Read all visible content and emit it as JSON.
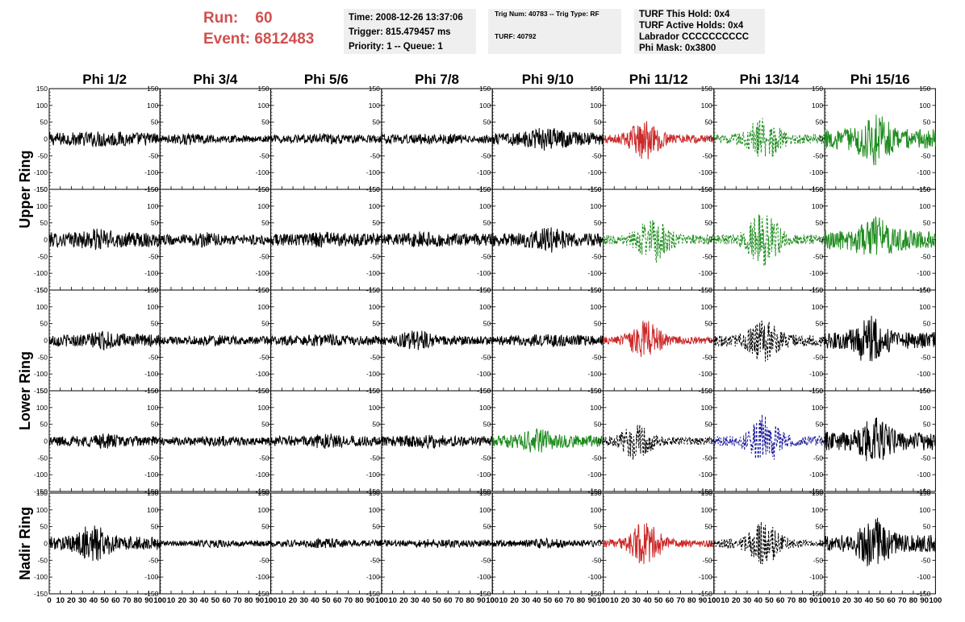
{
  "header": {
    "run_label": "Run:",
    "run_value": "60",
    "event_label": "Event:",
    "event_value": "6812483",
    "time": "Time: 2008-12-26 13:37:06",
    "trigger": "Trigger: 815.479457 ms",
    "priority": "Priority: 1 -- Queue: 1",
    "trig_num": "Trig Num: 40783 -- Trig Type: RF",
    "turf": "TURF: 40792",
    "turf_this_hold": "TURF This Hold: 0x4",
    "turf_active_holds": "TURF Active Holds: 0x4",
    "labrador": "Labrador CCCCCCCCCC",
    "phi_mask": "Phi Mask: 0x3800"
  },
  "colors": {
    "black": "#000000",
    "red": "#cc2a2a",
    "green": "#1f8c1f",
    "blue": "#1a1a9a",
    "run_text": "#d0504f",
    "info_bg": "#efefef"
  },
  "chart_data": {
    "type": "line",
    "columns": [
      "Phi 1/2",
      "Phi 3/4",
      "Phi 5/6",
      "Phi 7/8",
      "Phi 9/10",
      "Phi 11/12",
      "Phi 13/14",
      "Phi 15/16"
    ],
    "row_labels": [
      {
        "text": "Upper Ring",
        "rows": [
          0,
          1
        ]
      },
      {
        "text": "Lower Ring",
        "rows": [
          2,
          3
        ]
      },
      {
        "text": "Nadir Ring",
        "rows": [
          4
        ]
      }
    ],
    "ylim": [
      -150,
      150
    ],
    "xlim": [
      0,
      100
    ],
    "y_ticks": [
      -150,
      -100,
      -50,
      0,
      50,
      100,
      150
    ],
    "y_tick_labels": [
      "-150",
      "-100",
      "-50",
      "0",
      "50",
      "100",
      "150"
    ],
    "x_ticks": [
      0,
      10,
      20,
      30,
      40,
      50,
      60,
      70,
      80,
      90,
      100
    ],
    "x_tick_labels": [
      "0",
      "10",
      "20",
      "30",
      "40",
      "50",
      "60",
      "70",
      "80",
      "90",
      "100"
    ],
    "panels": [
      [
        {
          "color": "black",
          "dashed": false,
          "amp": 20,
          "burst_amp": 5,
          "burst_center": 50
        },
        {
          "color": "black",
          "dashed": false,
          "amp": 10,
          "burst_amp": 8,
          "burst_center": 25
        },
        {
          "color": "black",
          "dashed": false,
          "amp": 12,
          "burst_amp": 5,
          "burst_center": 50
        },
        {
          "color": "black",
          "dashed": false,
          "amp": 13,
          "burst_amp": 5,
          "burst_center": 50
        },
        {
          "color": "black",
          "dashed": false,
          "amp": 20,
          "burst_amp": 18,
          "burst_center": 50
        },
        {
          "color": "red",
          "dashed": false,
          "amp": 12,
          "burst_amp": 50,
          "burst_center": 38
        },
        {
          "color": "green",
          "dashed": true,
          "amp": 15,
          "burst_amp": 55,
          "burst_center": 45
        },
        {
          "color": "green",
          "dashed": false,
          "amp": 30,
          "burst_amp": 50,
          "burst_center": 45
        }
      ],
      [
        {
          "color": "black",
          "dashed": false,
          "amp": 22,
          "burst_amp": 12,
          "burst_center": 45
        },
        {
          "color": "black",
          "dashed": false,
          "amp": 15,
          "burst_amp": 8,
          "burst_center": 40
        },
        {
          "color": "black",
          "dashed": false,
          "amp": 18,
          "burst_amp": 8,
          "burst_center": 50
        },
        {
          "color": "black",
          "dashed": false,
          "amp": 18,
          "burst_amp": 8,
          "burst_center": 40
        },
        {
          "color": "black",
          "dashed": false,
          "amp": 20,
          "burst_amp": 20,
          "burst_center": 50
        },
        {
          "color": "green",
          "dashed": true,
          "amp": 15,
          "burst_amp": 55,
          "burst_center": 45
        },
        {
          "color": "green",
          "dashed": true,
          "amp": 15,
          "burst_amp": 75,
          "burst_center": 45
        },
        {
          "color": "green",
          "dashed": false,
          "amp": 30,
          "burst_amp": 40,
          "burst_center": 45
        }
      ],
      [
        {
          "color": "black",
          "dashed": false,
          "amp": 18,
          "burst_amp": 10,
          "burst_center": 50
        },
        {
          "color": "black",
          "dashed": false,
          "amp": 12,
          "burst_amp": 5,
          "burst_center": 50
        },
        {
          "color": "black",
          "dashed": false,
          "amp": 15,
          "burst_amp": 5,
          "burst_center": 50
        },
        {
          "color": "black",
          "dashed": false,
          "amp": 13,
          "burst_amp": 20,
          "burst_center": 30
        },
        {
          "color": "black",
          "dashed": false,
          "amp": 15,
          "burst_amp": 5,
          "burst_center": 50
        },
        {
          "color": "red",
          "dashed": false,
          "amp": 12,
          "burst_amp": 48,
          "burst_center": 38
        },
        {
          "color": "black",
          "dashed": true,
          "amp": 18,
          "burst_amp": 48,
          "burst_center": 45
        },
        {
          "color": "black",
          "dashed": false,
          "amp": 25,
          "burst_amp": 50,
          "burst_center": 40
        }
      ],
      [
        {
          "color": "black",
          "dashed": false,
          "amp": 15,
          "burst_amp": 8,
          "burst_center": 50
        },
        {
          "color": "black",
          "dashed": false,
          "amp": 12,
          "burst_amp": 5,
          "burst_center": 50
        },
        {
          "color": "black",
          "dashed": false,
          "amp": 15,
          "burst_amp": 8,
          "burst_center": 50
        },
        {
          "color": "black",
          "dashed": false,
          "amp": 15,
          "burst_amp": 8,
          "burst_center": 40
        },
        {
          "color": "green",
          "dashed": false,
          "amp": 18,
          "burst_amp": 20,
          "burst_center": 40
        },
        {
          "color": "black",
          "dashed": true,
          "amp": 12,
          "burst_amp": 45,
          "burst_center": 30
        },
        {
          "color": "blue",
          "dashed": true,
          "amp": 15,
          "burst_amp": 65,
          "burst_center": 45
        },
        {
          "color": "black",
          "dashed": false,
          "amp": 28,
          "burst_amp": 45,
          "burst_center": 45
        }
      ],
      [
        {
          "color": "black",
          "dashed": false,
          "amp": 20,
          "burst_amp": 40,
          "burst_center": 40
        },
        {
          "color": "black",
          "dashed": false,
          "amp": 8,
          "burst_amp": 5,
          "burst_center": 50
        },
        {
          "color": "black",
          "dashed": false,
          "amp": 10,
          "burst_amp": 5,
          "burst_center": 50
        },
        {
          "color": "black",
          "dashed": false,
          "amp": 10,
          "burst_amp": 5,
          "burst_center": 50
        },
        {
          "color": "black",
          "dashed": false,
          "amp": 10,
          "burst_amp": 5,
          "burst_center": 50
        },
        {
          "color": "red",
          "dashed": false,
          "amp": 12,
          "burst_amp": 55,
          "burst_center": 38
        },
        {
          "color": "black",
          "dashed": true,
          "amp": 12,
          "burst_amp": 55,
          "burst_center": 45
        },
        {
          "color": "black",
          "dashed": false,
          "amp": 25,
          "burst_amp": 55,
          "burst_center": 45
        }
      ]
    ]
  }
}
